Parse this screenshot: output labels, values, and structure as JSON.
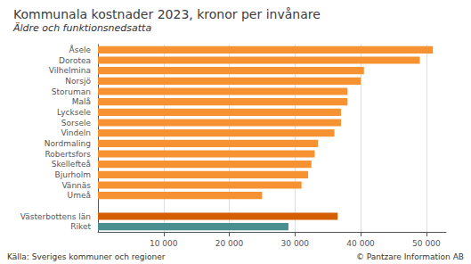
{
  "chart_data": {
    "type": "bar",
    "orientation": "horizontal",
    "title": "Kommunala kostnader 2023, kronor per invånare",
    "subtitle": "Äldre och funktionsnedsatta",
    "categories": [
      "Åsele",
      "Dorotea",
      "Vilhelmina",
      "Norsjö",
      "Storuman",
      "Malå",
      "Lycksele",
      "Sorsele",
      "Vindeln",
      "Nordmaling",
      "Robertsfors",
      "Skellefteå",
      "Bjurholm",
      "Vännäs",
      "Umeå",
      null,
      "Västerbottens län",
      "Riket"
    ],
    "values": [
      51000,
      49000,
      40500,
      40000,
      38000,
      38000,
      37000,
      37000,
      36000,
      33500,
      33000,
      32500,
      32000,
      31000,
      25000,
      0,
      36500,
      29000
    ],
    "colors": [
      "#f79232",
      "#f79232",
      "#f79232",
      "#f79232",
      "#f79232",
      "#f79232",
      "#f79232",
      "#f79232",
      "#f79232",
      "#f79232",
      "#f79232",
      "#f79232",
      "#f79232",
      "#f79232",
      "#f79232",
      "#ffffff",
      "#d45f00",
      "#4a8f8f"
    ],
    "xlim": [
      0,
      53000
    ],
    "xticks": [
      {
        "value": 10000,
        "label": "10 000"
      },
      {
        "value": 20000,
        "label": "20 000"
      },
      {
        "value": 30000,
        "label": "30 000"
      },
      {
        "value": 40000,
        "label": "40 000"
      },
      {
        "value": 50000,
        "label": "50 000"
      }
    ],
    "grid": true,
    "annotations": [
      "Källa: Sveriges kommuner och regioner",
      "© Pantzare Information AB"
    ]
  }
}
